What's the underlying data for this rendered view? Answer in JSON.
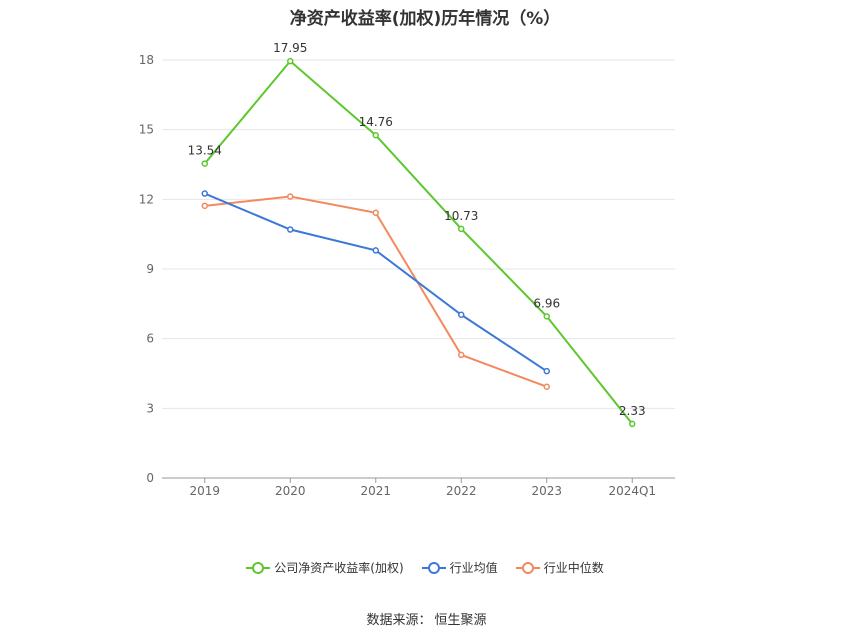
{
  "chart_data": {
    "type": "line",
    "title": "净资产收益率(加权)历年情况（%）",
    "categories": [
      "2019",
      "2020",
      "2021",
      "2022",
      "2023",
      "2024Q1"
    ],
    "ylim": [
      0,
      18
    ],
    "yticks": [
      0,
      3,
      6,
      9,
      12,
      15,
      18
    ],
    "grid": true,
    "legend_position": "bottom",
    "series": [
      {
        "name": "公司净资产收益率(加权)",
        "color": "#5cc82d",
        "values": [
          13.54,
          17.95,
          14.76,
          10.73,
          6.96,
          2.33
        ],
        "labels": [
          "13.54",
          "17.95",
          "14.76",
          "10.73",
          "6.96",
          "2.33"
        ]
      },
      {
        "name": "行业均值",
        "color": "#3c78d8",
        "values": [
          12.25,
          10.7,
          9.8,
          7.03,
          4.6,
          null
        ]
      },
      {
        "name": "行业中位数",
        "color": "#f28a5e",
        "values": [
          11.72,
          12.12,
          11.42,
          5.3,
          3.93,
          null
        ]
      }
    ]
  },
  "source": {
    "label": "数据来源：",
    "name": "恒生聚源"
  }
}
